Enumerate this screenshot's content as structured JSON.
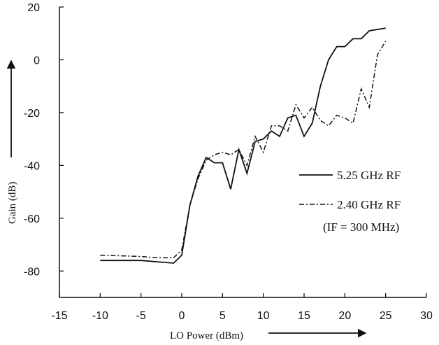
{
  "chart_data": {
    "type": "line",
    "xlabel": "LO Power (dBm)",
    "ylabel": "Gain (dB)",
    "xlim": [
      -15,
      30
    ],
    "ylim": [
      -90,
      20
    ],
    "xticks": [
      -15,
      -10,
      -5,
      0,
      5,
      10,
      15,
      20,
      25,
      30
    ],
    "yticks": [
      -80,
      -60,
      -40,
      -20,
      0,
      20
    ],
    "grid": false,
    "legend_position": "right",
    "note": "(IF = 300 MHz)",
    "series": [
      {
        "name": "5.25 GHz RF",
        "style": "solid",
        "x": [
          -10,
          -5,
          -3,
          -1,
          0,
          1,
          2,
          3,
          4,
          5,
          6,
          7,
          8,
          9,
          10,
          11,
          12,
          13,
          14,
          15,
          16,
          17,
          18,
          19,
          20,
          21,
          22,
          23,
          24,
          25
        ],
        "y": [
          -76,
          -76,
          -76.5,
          -77,
          -74,
          -55,
          -44,
          -37,
          -39,
          -39,
          -49,
          -34,
          -43,
          -31,
          -30,
          -27,
          -29,
          -22,
          -21,
          -29,
          -24,
          -10,
          0,
          5,
          5,
          8,
          8,
          11,
          11.5,
          12
        ]
      },
      {
        "name": "2.40 GHz RF",
        "style": "dash-dot",
        "x": [
          -10,
          -5,
          -3,
          -1,
          0,
          1,
          2,
          3,
          4,
          5,
          6,
          7,
          8,
          9,
          10,
          11,
          12,
          13,
          14,
          15,
          16,
          17,
          18,
          19,
          20,
          21,
          22,
          23,
          24,
          25
        ],
        "y": [
          -74,
          -74.5,
          -75,
          -75,
          -72,
          -55,
          -45,
          -38,
          -36,
          -35,
          -36,
          -34,
          -40,
          -29,
          -35,
          -25,
          -25,
          -27,
          -17,
          -22,
          -18,
          -23,
          -25,
          -21,
          -22,
          -24,
          -11,
          -18,
          2,
          7
        ]
      }
    ]
  },
  "colors": {
    "ink": "#111111",
    "background": "#ffffff"
  }
}
